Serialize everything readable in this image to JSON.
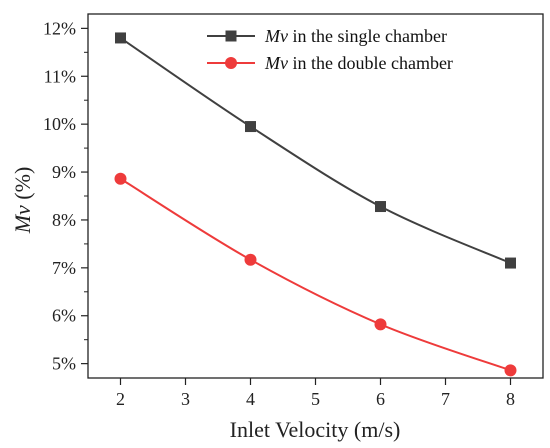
{
  "chart_data": {
    "type": "line",
    "x": [
      2,
      4,
      6,
      8
    ],
    "xlabel": "Inlet Velocity (m/s)",
    "ylabel_italic": "Mv",
    "ylabel_rest": " (%)",
    "xlim": [
      1.5,
      8.5
    ],
    "ylim": [
      4.7,
      12.3
    ],
    "xticks": [
      2,
      3,
      4,
      5,
      6,
      7,
      8
    ],
    "yticks": [
      5,
      6,
      7,
      8,
      9,
      10,
      11,
      12
    ],
    "ytick_suffix": "%",
    "legend_position": "top-right",
    "grid": false,
    "series": [
      {
        "name_italic": "Mv",
        "name_rest": " in the single chamber",
        "values": [
          11.8,
          9.95,
          8.28,
          7.1
        ],
        "color": "#404040",
        "marker": "square"
      },
      {
        "name_italic": "Mv",
        "name_rest": " in the double chamber",
        "values": [
          8.86,
          7.17,
          5.82,
          4.86
        ],
        "color": "#ee3b3b",
        "marker": "circle"
      }
    ]
  }
}
